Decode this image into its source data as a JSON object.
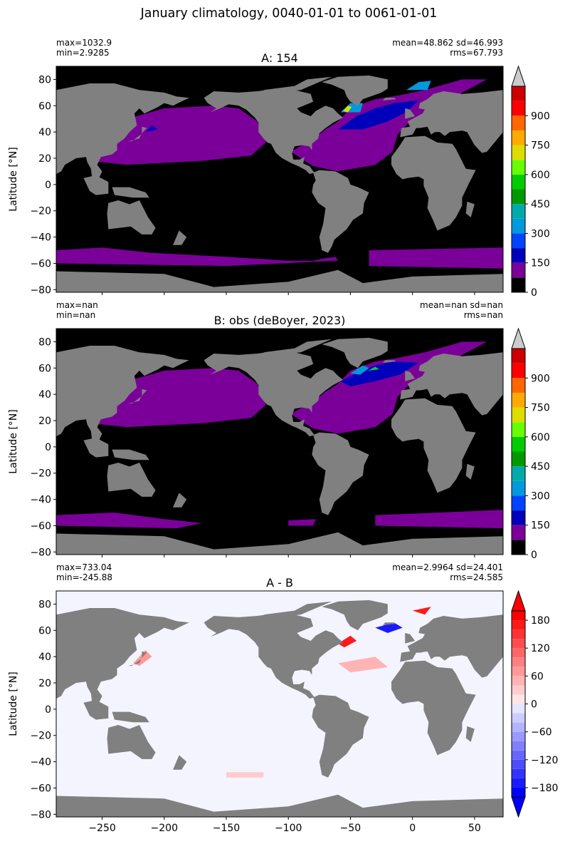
{
  "figure": {
    "suptitle": "January climatology, 0040-01-01 to 0061-01-01",
    "xaxis": {
      "xlim": [
        -287,
        73
      ],
      "ticks": [
        -250,
        -200,
        -150,
        -100,
        -50,
        0,
        50
      ]
    },
    "yaxis": {
      "label": "Latitude [°N]",
      "ylim": [
        -82,
        90
      ],
      "ticks": [
        -80,
        -60,
        -40,
        -20,
        0,
        20,
        40,
        60,
        80
      ]
    },
    "colors": {
      "land": "#808080",
      "low_field": "#000000",
      "purple": "#7b0099",
      "blue": "#0000bb",
      "cyan": "#0099dd",
      "green": "#00cc44",
      "yellow": "#dddd00",
      "red": "#dd0000",
      "diff_pos": "#ff1a1a",
      "diff_neg": "#1a1aff",
      "diff_zero": "#f4f4ff"
    }
  },
  "chart_data": [
    {
      "type": "heatmap",
      "title": "A: 154",
      "stats_left": [
        "max=1032.9",
        "min=2.9285"
      ],
      "stats_right": [
        "mean=48.862 sd=46.993",
        "rms=67.793"
      ],
      "ylabel": "Latitude [°N]",
      "xlim": [
        -287,
        73
      ],
      "ylim": [
        -82,
        90
      ],
      "show_xtick_labels": false,
      "colorbar": {
        "ticks": [
          0,
          150,
          300,
          450,
          600,
          750,
          900
        ],
        "levels": [
          0,
          75,
          150,
          225,
          300,
          375,
          450,
          525,
          600,
          675,
          750,
          825,
          900,
          975,
          1050
        ],
        "colors": [
          "#000000",
          "#7b0099",
          "#0000bb",
          "#0044ff",
          "#0099dd",
          "#00aaaa",
          "#009900",
          "#00cc00",
          "#66ff00",
          "#dddd00",
          "#ffaa00",
          "#ff6600",
          "#ff0000",
          "#cc0000"
        ],
        "extend": "max",
        "over_color": "#cccccc"
      }
    },
    {
      "type": "heatmap",
      "title": "B: obs (deBoyer, 2023)",
      "stats_left": [
        "max=nan",
        "min=nan"
      ],
      "stats_right": [
        "mean=nan sd=nan",
        "rms=nan"
      ],
      "ylabel": "Latitude [°N]",
      "xlim": [
        -287,
        73
      ],
      "ylim": [
        -82,
        90
      ],
      "show_xtick_labels": false,
      "colorbar": {
        "ticks": [
          0,
          150,
          300,
          450,
          600,
          750,
          900
        ],
        "levels": [
          0,
          75,
          150,
          225,
          300,
          375,
          450,
          525,
          600,
          675,
          750,
          825,
          900,
          975,
          1050
        ],
        "colors": [
          "#000000",
          "#7b0099",
          "#0000bb",
          "#0044ff",
          "#0099dd",
          "#00aaaa",
          "#009900",
          "#00cc00",
          "#66ff00",
          "#dddd00",
          "#ffaa00",
          "#ff6600",
          "#ff0000",
          "#cc0000"
        ],
        "extend": "max",
        "over_color": "#cccccc"
      }
    },
    {
      "type": "heatmap",
      "title": "A - B",
      "stats_left": [
        "max=733.04",
        "min=-245.88"
      ],
      "stats_right": [
        "mean=2.9964 sd=24.401",
        "rms=24.585"
      ],
      "ylabel": "Latitude [°N]",
      "xlim": [
        -287,
        73
      ],
      "ylim": [
        -82,
        90
      ],
      "show_xtick_labels": true,
      "colorbar": {
        "ticks": [
          -180,
          -120,
          -60,
          0,
          60,
          120,
          180
        ],
        "levels": [
          -200,
          -180,
          -160,
          -140,
          -120,
          -100,
          -80,
          -60,
          -40,
          -20,
          0,
          20,
          40,
          60,
          80,
          100,
          120,
          140,
          160,
          180,
          200
        ],
        "colors": [
          "#0000ff",
          "#1a1aff",
          "#3333ff",
          "#4d4dff",
          "#6666ff",
          "#8080ff",
          "#9999ff",
          "#b3b3ff",
          "#ccccff",
          "#e6e6ff",
          "#ffe6e6",
          "#ffcccc",
          "#ffb3b3",
          "#ff9999",
          "#ff8080",
          "#ff6666",
          "#ff4d4d",
          "#ff3333",
          "#ff1a1a",
          "#ff0000"
        ],
        "extend": "both",
        "under_color": "#0000ff",
        "over_color": "#ff0000"
      }
    }
  ]
}
